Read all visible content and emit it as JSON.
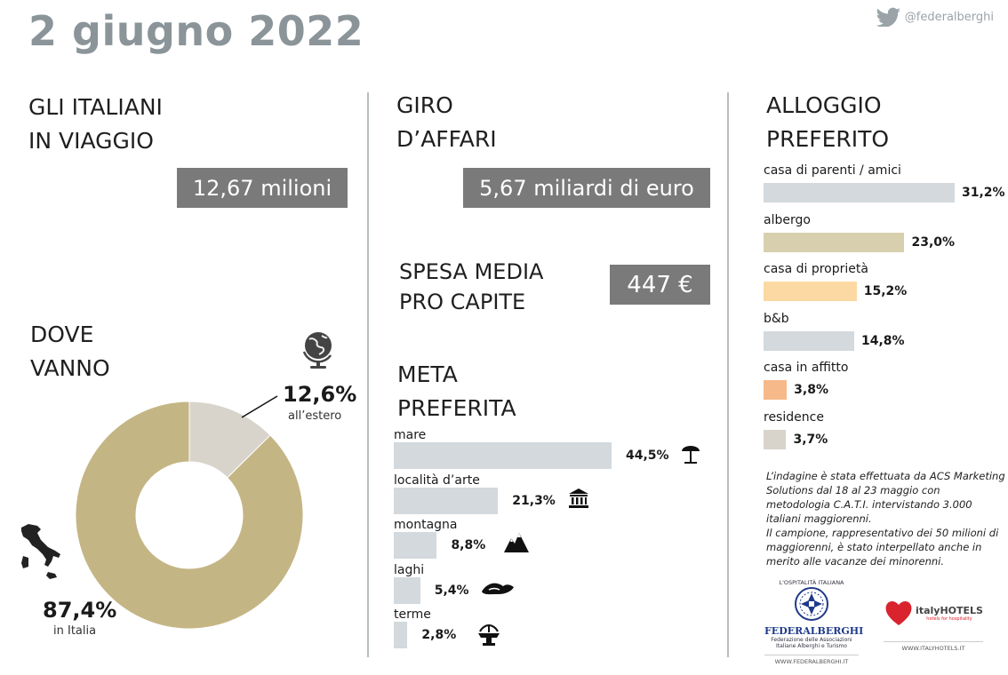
{
  "header": {
    "title": "2 giugno 2022",
    "handle": "@federalberghi"
  },
  "viaggiatori": {
    "heading": "GLI ITALIANI\nIN VIAGGIO",
    "value": "12,67 milioni"
  },
  "giro_affari": {
    "heading": "GIRO\nD’AFFARI",
    "value": "5,67 miliardi di euro"
  },
  "spesa": {
    "heading": "SPESA MEDIA\nPRO CAPITE",
    "value": "447 €"
  },
  "dove": {
    "heading": "DOVE\nVANNO",
    "estero_pct": "12,6%",
    "estero_label": "all’estero",
    "italia_pct": "87,4%",
    "italia_label": "in Italia"
  },
  "meta": {
    "heading": "META\nPREFERITA"
  },
  "alloggio": {
    "heading": "ALLOGGIO\nPREFERITO"
  },
  "chart_data": [
    {
      "type": "pie",
      "title": "DOVE VANNO",
      "categories": [
        "all’estero",
        "in Italia"
      ],
      "values": [
        12.6,
        87.4
      ],
      "colors": [
        "#d8d4cc",
        "#c4b584"
      ]
    },
    {
      "type": "bar",
      "title": "META PREFERITA",
      "categories": [
        "mare",
        "località d’arte",
        "montagna",
        "laghi",
        "terme"
      ],
      "values": [
        44.5,
        21.3,
        8.8,
        5.4,
        2.8
      ],
      "labels": [
        "44,5%",
        "21,3%",
        "8,8%",
        "5,4%",
        "2,8%"
      ],
      "icons": [
        "beach-umbrella-icon",
        "monument-icon",
        "mountain-icon",
        "lake-icon",
        "fountain-icon"
      ],
      "color": "#d3d9dd"
    },
    {
      "type": "bar",
      "title": "ALLOGGIO PREFERITO",
      "categories": [
        "casa di parenti / amici",
        "albergo",
        "casa di proprietà",
        "b&b",
        "casa in affitto",
        "residence"
      ],
      "values": [
        31.2,
        23.0,
        15.2,
        14.8,
        3.8,
        3.7
      ],
      "labels": [
        "31,2%",
        "23,0%",
        "15,2%",
        "14,8%",
        "3,8%",
        "3,7%"
      ],
      "colors": [
        "#d3d9dd",
        "#d8cfae",
        "#fcd9a2",
        "#d3d9dd",
        "#f6b98a",
        "#d8d4cc"
      ]
    }
  ],
  "note": {
    "p1": "L’indagine è stata effettuata da ACS Marketing Solutions dal 18 al 23 maggio con metodologia C.A.T.I. intervistando 3.000 italiani maggiorenni.",
    "p2": "Il campione, rappresentativo dei 50 milioni di maggiorenni, è stato interpellato anche in merito alle vacanze dei minorenni."
  },
  "logos": {
    "fed_top": "L'OSPITALITÀ ITALIANA",
    "fed_name": "FEDERALBERGHI",
    "fed_sub": "Federazione delle Associazioni Italiane Alberghi e Turismo",
    "fed_url": "WWW.FEDERALBERGHI.IT",
    "italy_name": "italyHOTELS",
    "italy_sub": "hotels for hospitality",
    "italy_url": "WWW.ITALYHOTELS.IT"
  }
}
